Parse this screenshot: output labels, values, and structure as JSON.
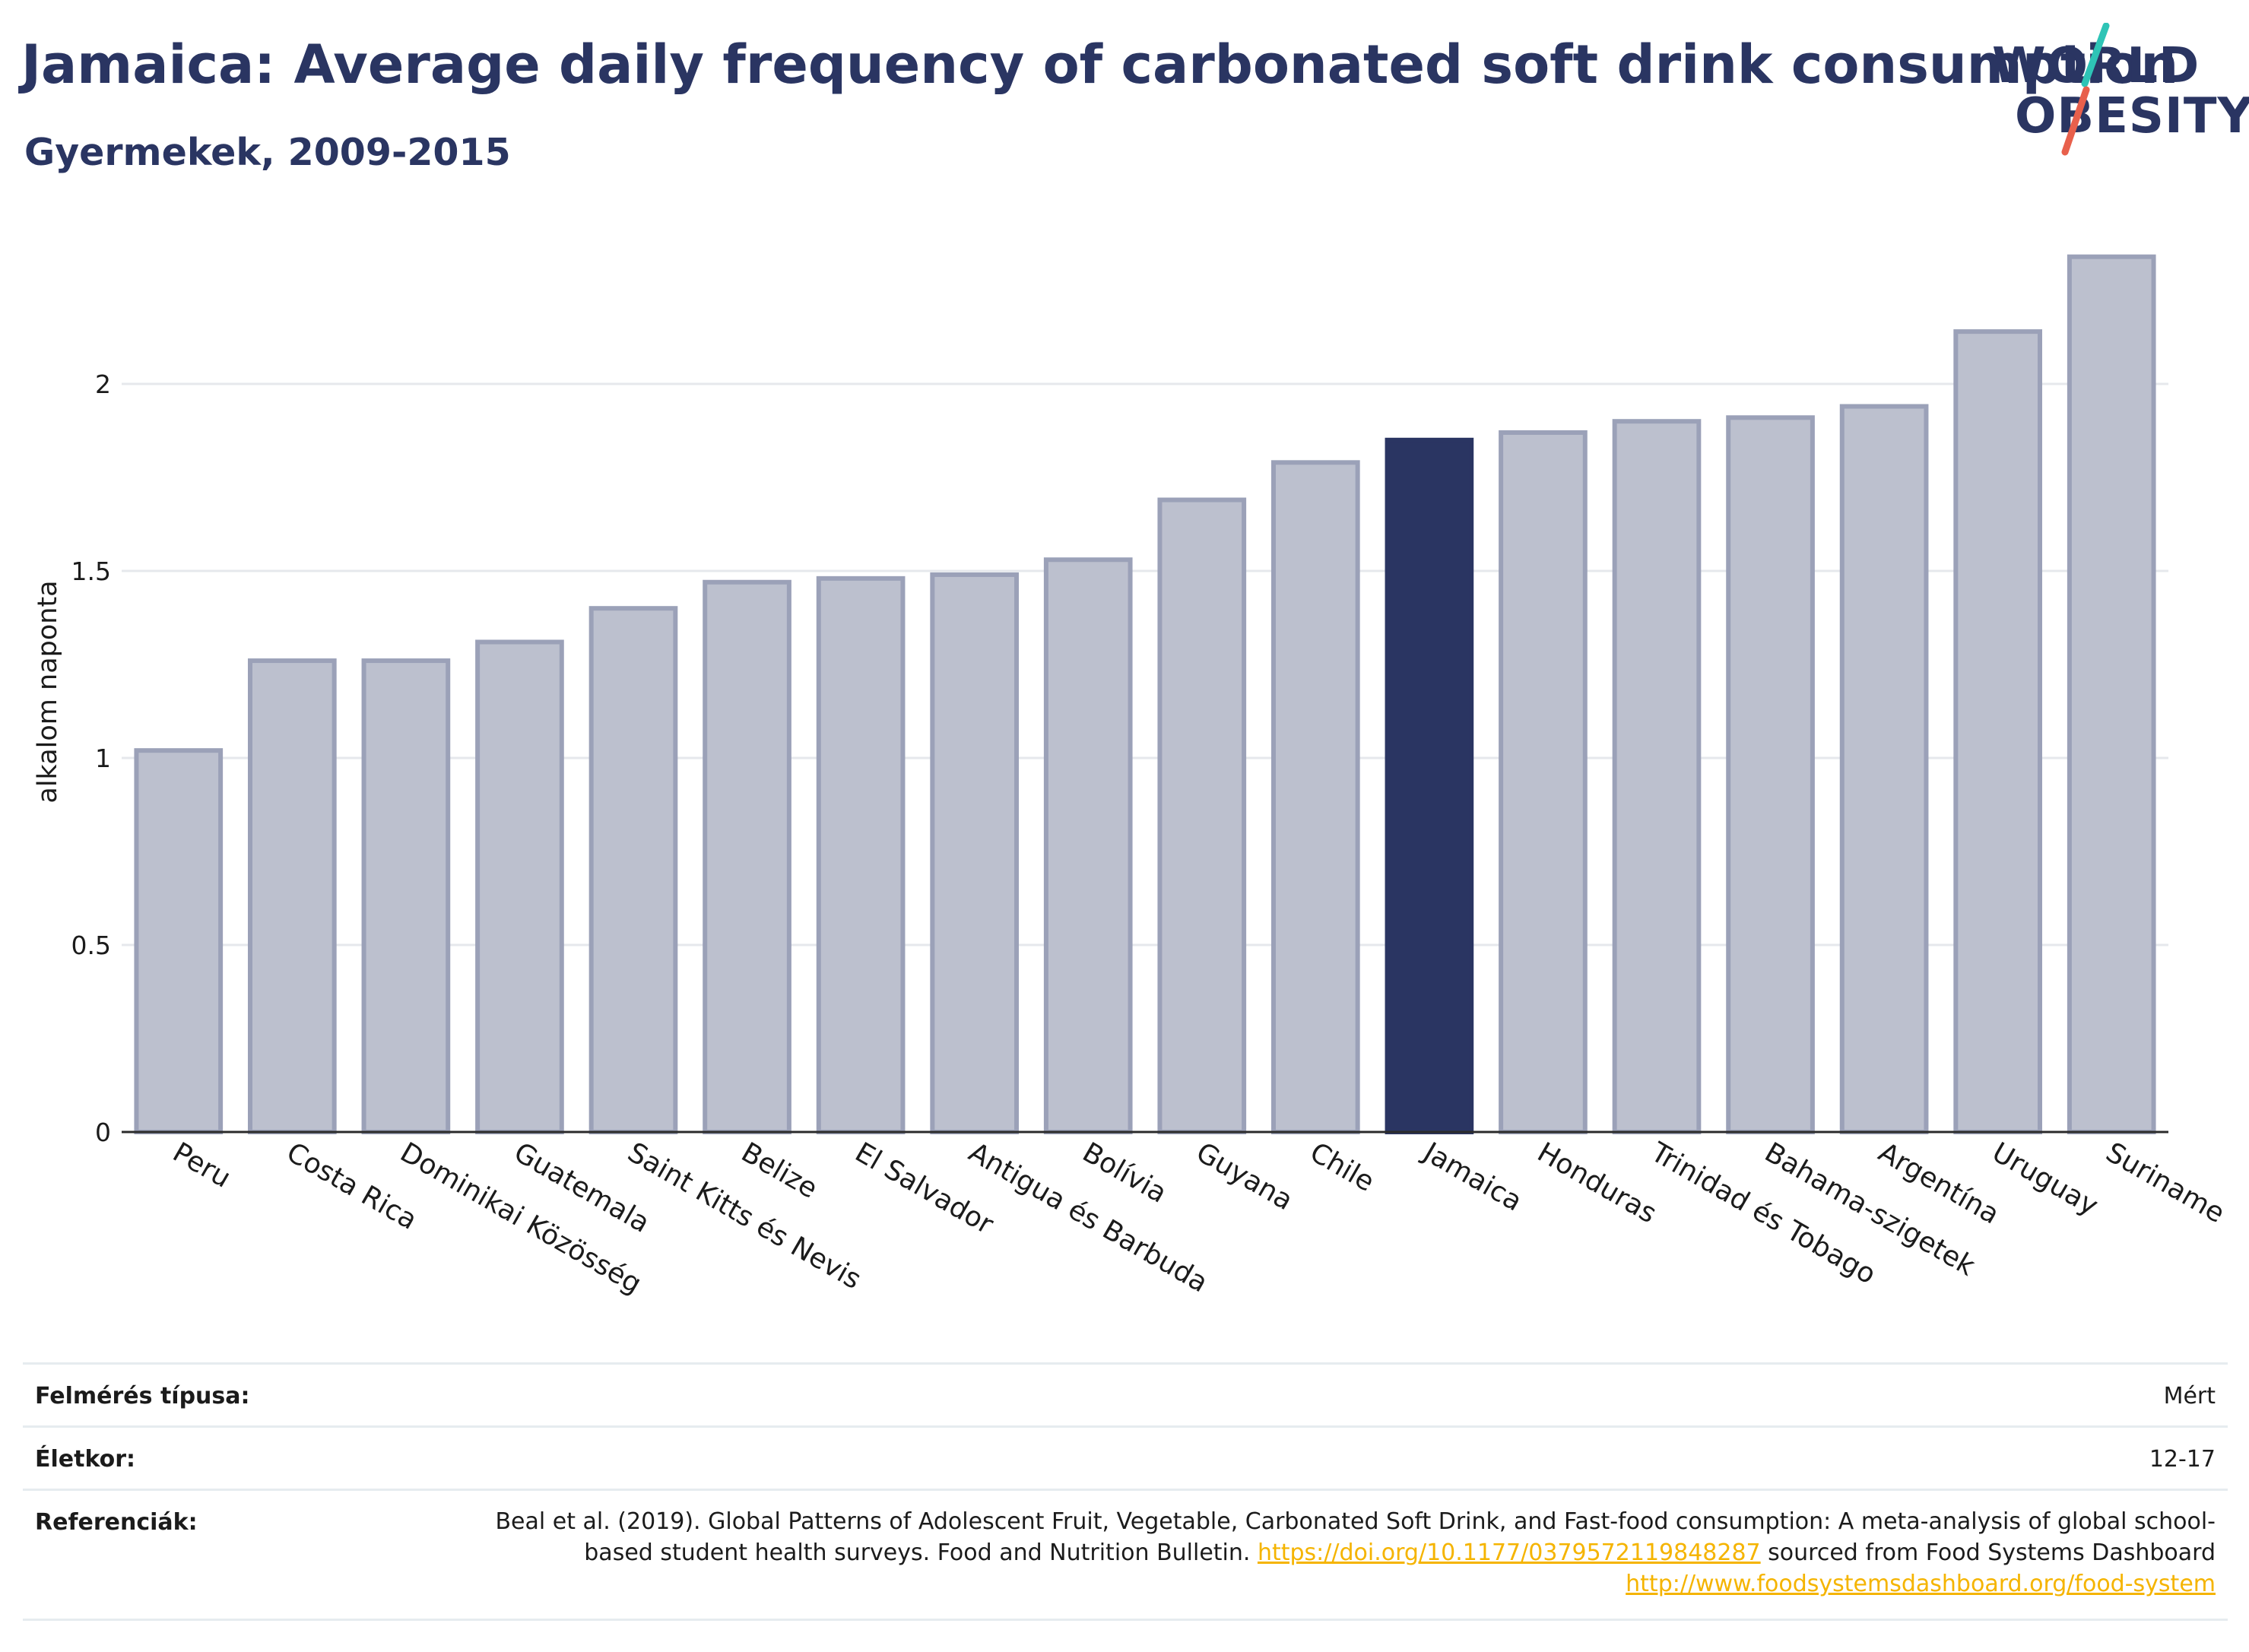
{
  "header": {
    "title": "Jamaica: Average daily frequency of carbonated soft drink consumption",
    "subtitle": "Gyermekek, 2009-2015"
  },
  "logo": {
    "line1": "WORLD",
    "line2": "OBESITY",
    "colors": {
      "text": "#2a3562",
      "slash_top": "#2ec4b6",
      "slash_bottom": "#e8604c"
    }
  },
  "chart_data": {
    "type": "bar",
    "title": "",
    "xlabel": "",
    "ylabel": "alkalom naponta",
    "ylim": [
      0,
      2.45
    ],
    "yticks": [
      0,
      0.5,
      1,
      1.5,
      2
    ],
    "ytick_labels": [
      "0",
      "0.5",
      "1",
      "1.5",
      "2"
    ],
    "grid": true,
    "highlight": "Jamaica",
    "colors": {
      "bar": "#bcc0ce",
      "bar_border": "#9ba1b8",
      "highlight": "#2a3562"
    },
    "categories": [
      "Peru",
      "Costa Rica",
      "Dominikai Közösség",
      "Guatemala",
      "Saint Kitts és Nevis",
      "Belize",
      "El Salvador",
      "Antigua és Barbuda",
      "Bolívia",
      "Guyana",
      "Chile",
      "Jamaica",
      "Honduras",
      "Trinidad és Tobago",
      "Bahama-szigetek",
      "Argentína",
      "Uruguay",
      "Suriname"
    ],
    "values": [
      1.02,
      1.26,
      1.26,
      1.31,
      1.4,
      1.47,
      1.48,
      1.49,
      1.53,
      1.69,
      1.79,
      1.85,
      1.87,
      1.9,
      1.91,
      1.94,
      2.14,
      2.34
    ]
  },
  "meta": {
    "survey_type_label": "Felmérés típusa:",
    "survey_type_value": "Mért",
    "age_label": "Életkor:",
    "age_value": "12-17",
    "references_label": "Referenciák:",
    "references_text_1": "Beal et al. (2019). Global Patterns of Adolescent Fruit, Vegetable, Carbonated Soft Drink, and Fast-food consumption: A meta-analysis of global school-based student health surveys. Food and Nutrition Bulletin. ",
    "references_link_1": "https://doi.org/10.1177/0379572119848287",
    "references_text_2": " sourced from Food Systems Dashboard ",
    "references_link_2": "http://www.foodsystemsdashboard.org/food-system"
  }
}
